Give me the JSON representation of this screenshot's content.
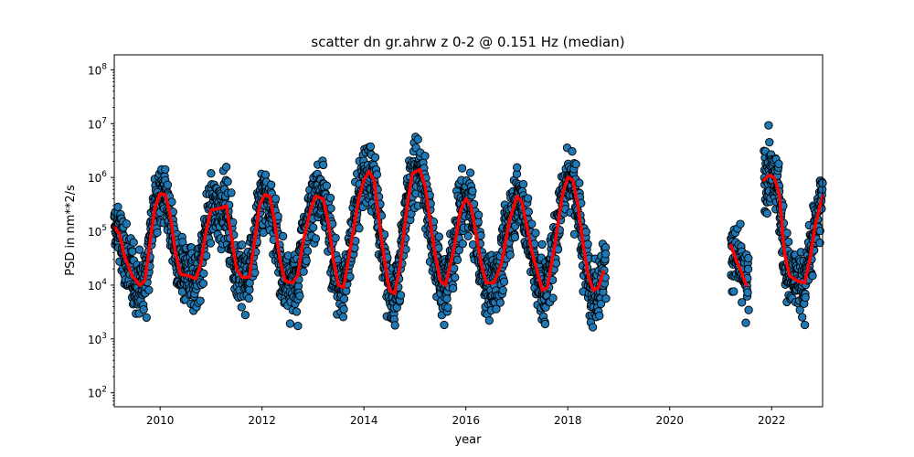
{
  "chart_data": {
    "type": "scatter",
    "title": "scatter dn gr.ahrw z 0-2 @ 0.151 Hz (median)",
    "xlabel": "year",
    "ylabel": "PSD in nm**2/s",
    "xlim": [
      2009.1,
      2023.0
    ],
    "ylim": [
      55,
      190000000
    ],
    "yscale": "log",
    "grid": false,
    "x_ticks": [
      {
        "value": 2010,
        "label": "2010"
      },
      {
        "value": 2012,
        "label": "2012"
      },
      {
        "value": 2014,
        "label": "2014"
      },
      {
        "value": 2016,
        "label": "2016"
      },
      {
        "value": 2018,
        "label": "2018"
      },
      {
        "value": 2020,
        "label": "2020"
      },
      {
        "value": 2022,
        "label": "2022"
      }
    ],
    "y_ticks": [
      {
        "value": 100,
        "base": "10",
        "exp": "2"
      },
      {
        "value": 1000,
        "base": "10",
        "exp": "3"
      },
      {
        "value": 10000,
        "base": "10",
        "exp": "4"
      },
      {
        "value": 100000,
        "base": "10",
        "exp": "5"
      },
      {
        "value": 1000000,
        "base": "10",
        "exp": "6"
      },
      {
        "value": 10000000,
        "base": "10",
        "exp": "7"
      },
      {
        "value": 100000000,
        "base": "10",
        "exp": "8"
      }
    ],
    "scatter_color": "#1f77b4",
    "scatter_edge_color": "#000000",
    "median_color": "#ff0000",
    "segments": [
      {
        "x0": 2009.1,
        "x1": 2018.75
      },
      {
        "x0": 2021.2,
        "x1": 2021.55
      },
      {
        "x0": 2021.85,
        "x1": 2023.0
      }
    ],
    "median_line": [
      [
        [
          2009.1,
          120000
        ],
        [
          2009.2,
          90000
        ],
        [
          2009.3,
          35000
        ],
        [
          2009.45,
          15000
        ],
        [
          2009.6,
          10000
        ],
        [
          2009.7,
          12000
        ],
        [
          2009.8,
          60000
        ],
        [
          2009.9,
          280000
        ],
        [
          2010.0,
          500000
        ],
        [
          2010.1,
          480000
        ],
        [
          2010.2,
          200000
        ],
        [
          2010.3,
          40000
        ],
        [
          2010.4,
          16000
        ],
        [
          2010.55,
          15000
        ],
        [
          2010.7,
          13000
        ],
        [
          2010.8,
          25000
        ],
        [
          2010.9,
          100000
        ],
        [
          2011.0,
          250000
        ],
        [
          2011.2,
          270000
        ],
        [
          2011.3,
          300000
        ],
        [
          2011.4,
          80000
        ],
        [
          2011.5,
          20000
        ],
        [
          2011.6,
          14000
        ],
        [
          2011.75,
          14000
        ],
        [
          2011.85,
          60000
        ],
        [
          2011.95,
          300000
        ],
        [
          2012.05,
          480000
        ],
        [
          2012.15,
          450000
        ],
        [
          2012.25,
          150000
        ],
        [
          2012.35,
          30000
        ],
        [
          2012.45,
          12000
        ],
        [
          2012.6,
          11000
        ],
        [
          2012.7,
          15000
        ],
        [
          2012.8,
          60000
        ],
        [
          2012.95,
          250000
        ],
        [
          2013.05,
          450000
        ],
        [
          2013.2,
          400000
        ],
        [
          2013.3,
          150000
        ],
        [
          2013.4,
          30000
        ],
        [
          2013.5,
          10000
        ],
        [
          2013.6,
          9000
        ],
        [
          2013.75,
          60000
        ],
        [
          2013.9,
          400000
        ],
        [
          2014.0,
          900000
        ],
        [
          2014.1,
          1300000
        ],
        [
          2014.2,
          900000
        ],
        [
          2014.3,
          150000
        ],
        [
          2014.4,
          30000
        ],
        [
          2014.5,
          8000
        ],
        [
          2014.6,
          7000
        ],
        [
          2014.7,
          20000
        ],
        [
          2014.85,
          300000
        ],
        [
          2014.95,
          1200000
        ],
        [
          2015.1,
          1400000
        ],
        [
          2015.2,
          700000
        ],
        [
          2015.3,
          150000
        ],
        [
          2015.4,
          35000
        ],
        [
          2015.5,
          12000
        ],
        [
          2015.6,
          10000
        ],
        [
          2015.75,
          40000
        ],
        [
          2015.9,
          250000
        ],
        [
          2016.0,
          400000
        ],
        [
          2016.1,
          300000
        ],
        [
          2016.2,
          90000
        ],
        [
          2016.3,
          25000
        ],
        [
          2016.4,
          11000
        ],
        [
          2016.55,
          11000
        ],
        [
          2016.7,
          25000
        ],
        [
          2016.85,
          150000
        ],
        [
          2017.0,
          450000
        ],
        [
          2017.1,
          350000
        ],
        [
          2017.2,
          120000
        ],
        [
          2017.3,
          40000
        ],
        [
          2017.4,
          18000
        ],
        [
          2017.5,
          8000
        ],
        [
          2017.6,
          9000
        ],
        [
          2017.75,
          60000
        ],
        [
          2017.9,
          500000
        ],
        [
          2018.0,
          1000000
        ],
        [
          2018.1,
          900000
        ],
        [
          2018.2,
          300000
        ],
        [
          2018.3,
          60000
        ],
        [
          2018.4,
          15000
        ],
        [
          2018.5,
          8000
        ],
        [
          2018.6,
          9000
        ],
        [
          2018.7,
          18000
        ]
      ],
      [
        [
          2021.2,
          55000
        ],
        [
          2021.3,
          30000
        ],
        [
          2021.4,
          18000
        ],
        [
          2021.5,
          10000
        ]
      ],
      [
        [
          2021.85,
          900000
        ],
        [
          2021.95,
          1100000
        ],
        [
          2022.05,
          1000000
        ],
        [
          2022.15,
          500000
        ],
        [
          2022.25,
          40000
        ],
        [
          2022.35,
          15000
        ],
        [
          2022.5,
          12000
        ],
        [
          2022.65,
          11000
        ],
        [
          2022.75,
          30000
        ],
        [
          2022.85,
          120000
        ],
        [
          2022.95,
          300000
        ],
        [
          2023.0,
          450000
        ]
      ]
    ]
  }
}
